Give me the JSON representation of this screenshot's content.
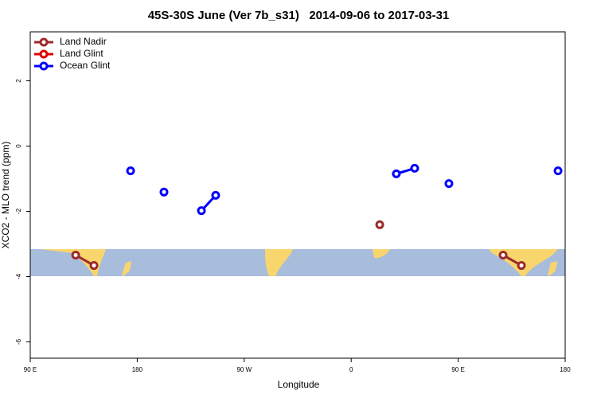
{
  "chart_data": {
    "type": "line",
    "title": "45S-30S June (Ver 7b_s31)   2014-09-06 to 2017-03-31",
    "x_label": "Longitude",
    "y_label": "XCO2 - MLO trend (ppm)",
    "xlim": [
      90,
      540
    ],
    "xticks": [
      {
        "value": 90,
        "label": "90 E"
      },
      {
        "value": 180,
        "label": "180"
      },
      {
        "value": 270,
        "label": "90 W"
      },
      {
        "value": 360,
        "label": "0"
      },
      {
        "value": 450,
        "label": "90 E"
      },
      {
        "value": 540,
        "label": "180"
      }
    ],
    "ylim": [
      -6.5,
      3.5
    ],
    "yticks": [
      2,
      0,
      -2,
      -4,
      -6
    ],
    "legend": "top-left",
    "series": [
      {
        "name": "Land Nadir",
        "color": "#9e2a2b",
        "x": [
          128.2,
          143.6,
          null,
          384,
          null,
          487.8,
          503.2
        ],
        "values": [
          -3.34,
          -3.66,
          null,
          -2.41,
          null,
          -3.34,
          -3.66
        ]
      },
      {
        "name": "Land Glint",
        "color": "#e00000",
        "x": [],
        "values": []
      },
      {
        "name": "Ocean Glint",
        "color": "#0000ff",
        "x": [
          174.4,
          null,
          202.5,
          null,
          234,
          246,
          null,
          398,
          413.4,
          null,
          442.2,
          null,
          534
        ],
        "values": [
          -0.76,
          null,
          -1.41,
          null,
          -1.98,
          -1.51,
          null,
          -0.85,
          -0.68,
          null,
          -1.15,
          null,
          -0.76
        ]
      }
    ]
  }
}
